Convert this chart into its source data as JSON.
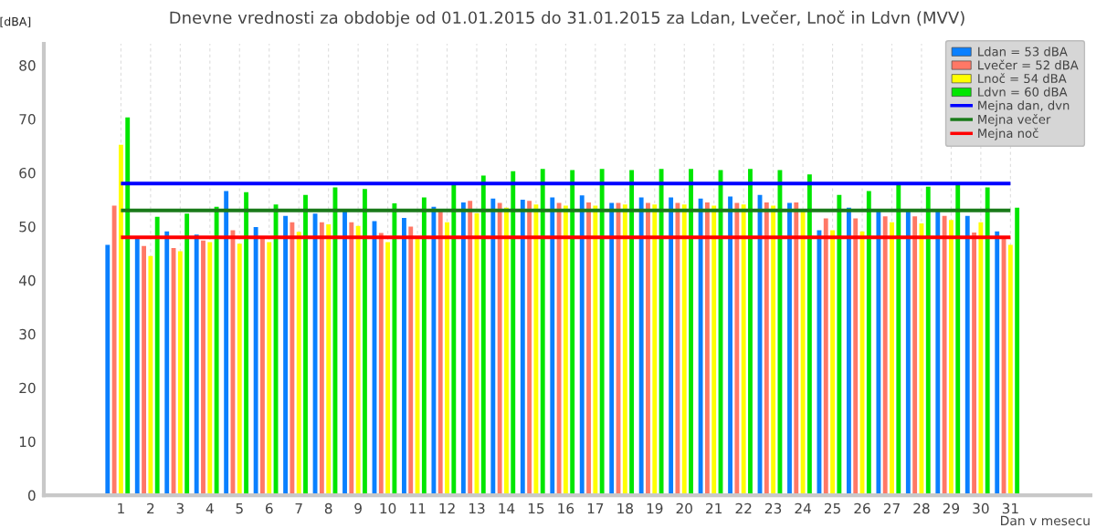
{
  "chart_data": {
    "type": "bar",
    "title": "Dnevne vrednosti za obdobje od 01.01.2015 do 31.01.2015 za Ldan, Lvečer, Lnoč in Ldvn (MVV)",
    "xlabel": "Dan v mesecu",
    "ylabel": "[dBA]",
    "x": [
      1,
      2,
      3,
      4,
      5,
      6,
      7,
      8,
      9,
      10,
      11,
      12,
      13,
      14,
      15,
      16,
      17,
      18,
      19,
      20,
      21,
      22,
      23,
      24,
      25,
      26,
      27,
      28,
      29,
      30,
      31
    ],
    "xlim": [
      -1.6,
      33.7
    ],
    "xticks": [
      1,
      2,
      3,
      4,
      5,
      6,
      7,
      8,
      9,
      10,
      11,
      12,
      13,
      14,
      15,
      16,
      17,
      18,
      19,
      20,
      21,
      22,
      23,
      24,
      25,
      26,
      27,
      28,
      29,
      30,
      31
    ],
    "ylim": [
      0,
      84
    ],
    "yticks": [
      0,
      10,
      20,
      30,
      40,
      50,
      60,
      70,
      80
    ],
    "grid": "x",
    "legend": "top right",
    "series": [
      {
        "name": "Ldan = 53 dBA",
        "color": "#0a80ff",
        "values": [
          46.6,
          47.8,
          49.1,
          48.5,
          56.6,
          49.9,
          52.0,
          52.4,
          52.8,
          51.0,
          51.6,
          53.7,
          54.5,
          55.2,
          55.0,
          55.4,
          55.8,
          54.4,
          55.4,
          55.4,
          55.2,
          55.6,
          55.9,
          54.4,
          49.3,
          53.5,
          53.0,
          53.0,
          53.0,
          52.0,
          49.1
        ]
      },
      {
        "name": "Lvečer = 52 dBA",
        "color": "#ff7866",
        "values": [
          53.9,
          46.4,
          46.0,
          47.4,
          49.3,
          48.0,
          50.8,
          50.8,
          50.8,
          48.8,
          50.0,
          53.0,
          54.8,
          54.4,
          54.8,
          54.4,
          54.5,
          54.4,
          54.4,
          54.4,
          54.5,
          54.4,
          54.5,
          54.5,
          51.5,
          51.5,
          51.9,
          51.9,
          52.0,
          48.9,
          48.0
        ]
      },
      {
        "name": "Lnoč = 54 dBA",
        "color": "#ffff00",
        "values": [
          65.2,
          44.5,
          45.4,
          47.1,
          46.8,
          47.1,
          49.0,
          50.4,
          50.1,
          47.1,
          48.0,
          50.8,
          52.5,
          53.5,
          54.1,
          53.9,
          53.9,
          54.1,
          54.1,
          54.1,
          53.9,
          54.1,
          53.9,
          52.8,
          49.3,
          49.1,
          50.8,
          50.6,
          51.2,
          50.8,
          46.6
        ]
      },
      {
        "name": "Ldvn = 60 dBA",
        "color": "#00e600",
        "values": [
          70.3,
          51.8,
          52.4,
          53.7,
          56.4,
          54.1,
          55.9,
          57.3,
          57.0,
          54.3,
          55.4,
          58.2,
          59.5,
          60.3,
          60.7,
          60.5,
          60.7,
          60.5,
          60.7,
          60.7,
          60.5,
          60.7,
          60.5,
          59.7,
          55.9,
          56.6,
          57.7,
          57.4,
          58.0,
          57.3,
          53.5
        ]
      }
    ],
    "ref_lines": [
      {
        "axis": "y",
        "value": 58,
        "label": "Mejna dan, dvn",
        "color": "#0000ff"
      },
      {
        "axis": "y",
        "value": 53,
        "label": "Mejna večer",
        "color": "#1a7a1a"
      },
      {
        "axis": "y",
        "value": 48,
        "label": "Mejna noč",
        "color": "#ff0000"
      }
    ]
  }
}
